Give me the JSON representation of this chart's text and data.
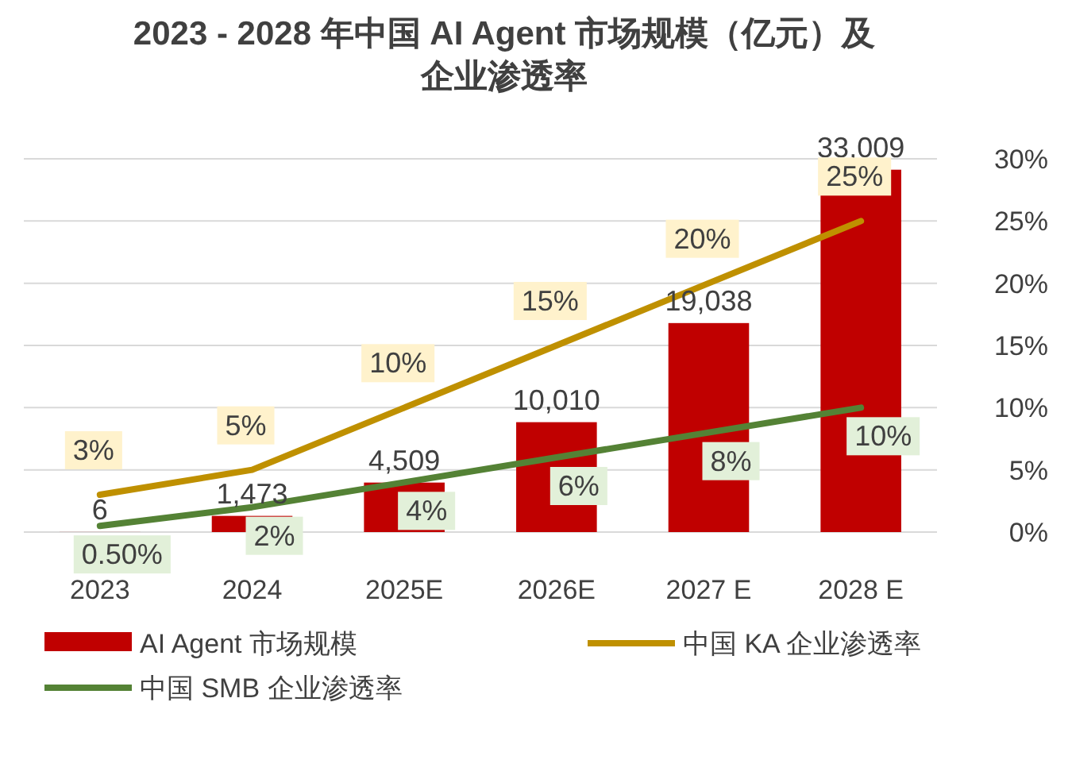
{
  "chart_data": {
    "type": "bar",
    "title": "2023 - 2028 年中国 AI Agent 市场规模（亿元）及企业渗透率",
    "categories": [
      "2023",
      "2024",
      "2025E",
      "2026E",
      "2027 E",
      "2028  E"
    ],
    "ylim": [
      0,
      34000
    ],
    "y2lim": [
      0,
      30
    ],
    "y2ticks": [
      {
        "value": 0,
        "label": "0%"
      },
      {
        "value": 5,
        "label": "5%"
      },
      {
        "value": 10,
        "label": "10%"
      },
      {
        "value": 15,
        "label": "15%"
      },
      {
        "value": 20,
        "label": "20%"
      },
      {
        "value": 25,
        "label": "25%"
      },
      {
        "value": 30,
        "label": "30%"
      }
    ],
    "grid": "y",
    "legend": "bottom",
    "series": [
      {
        "name": "AI Agent 市场规模",
        "color": "#c00000",
        "values": [
          6,
          1473,
          4509,
          10010,
          19038,
          33009
        ],
        "value_labels": [
          "6",
          "1,473",
          "4,509",
          "10,010",
          "19,038",
          "33,009"
        ]
      },
      {
        "name": "中国 KA 企业渗透率",
        "type": "line",
        "axis": "y2",
        "color": "#bf9000",
        "values": [
          3,
          5,
          10,
          15,
          20,
          25
        ],
        "value_labels": [
          "3%",
          "5%",
          "10%",
          "15%",
          "20%",
          "25%"
        ]
      },
      {
        "name": "中国 SMB 企业渗透率",
        "type": "line",
        "axis": "y2",
        "color": "#548235",
        "values": [
          0.5,
          2,
          4,
          6,
          8,
          10
        ],
        "value_labels": [
          "0.50%",
          "2%",
          "4%",
          "6%",
          "8%",
          "10%"
        ]
      }
    ]
  }
}
